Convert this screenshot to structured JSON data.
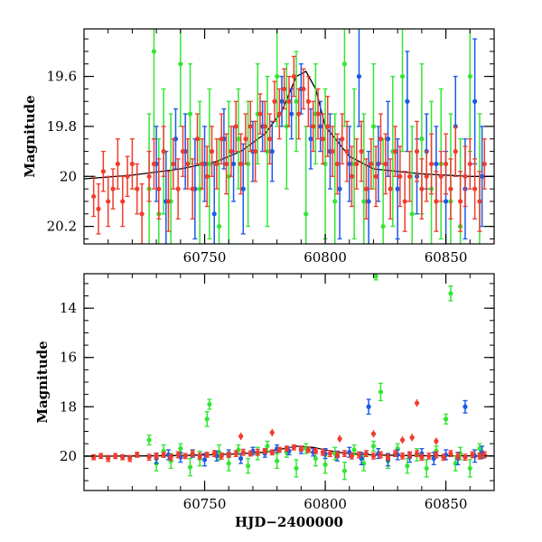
{
  "chart_data": [
    {
      "type": "scatter",
      "panel": "top",
      "xlabel": "",
      "ylabel": "Magnitude",
      "xlim": [
        60700,
        60870
      ],
      "ylim": [
        20.27,
        19.41
      ],
      "y_inverted": true,
      "xticks": [
        60750,
        60800,
        60850
      ],
      "xtick_labels": [
        "60750",
        "60800",
        "60850"
      ],
      "yticks": [
        19.6,
        19.8,
        20,
        20.2
      ],
      "ytick_labels": [
        "19.6",
        "19.8",
        "20",
        "20.2"
      ],
      "model_curve": {
        "color": "#000000",
        "x": [
          60700,
          60720,
          60740,
          60755,
          60765,
          60775,
          60782,
          60788,
          60792,
          60796,
          60800,
          60810,
          60820,
          60840,
          60860,
          60870
        ],
        "y": [
          20.01,
          19.995,
          19.97,
          19.94,
          19.9,
          19.83,
          19.74,
          19.6,
          19.58,
          19.65,
          19.8,
          19.92,
          19.97,
          19.99,
          20.0,
          20.0
        ]
      },
      "series": [
        {
          "color": "#33e633",
          "x": [
            60727,
            60729,
            60731,
            60733,
            60736,
            60740,
            60744,
            60748,
            60752,
            60756,
            60760,
            60764,
            60768,
            60772,
            60776,
            60780,
            60784,
            60788,
            60792,
            60796,
            60800,
            60804,
            60808,
            60812,
            60816,
            60820,
            60824,
            60828,
            60832,
            60836,
            60840,
            60844,
            60848,
            60852,
            60856,
            60860,
            60864
          ],
          "y": [
            20.05,
            19.5,
            20.15,
            19.9,
            20.1,
            19.55,
            19.75,
            20.05,
            19.95,
            20.2,
            20.0,
            19.85,
            19.95,
            19.75,
            19.9,
            19.6,
            19.8,
            19.7,
            20.15,
            19.75,
            19.95,
            20.1,
            19.55,
            19.95,
            20.1,
            19.8,
            20.2,
            19.9,
            19.6,
            20.15,
            19.85,
            20.05,
            19.95,
            20.1,
            20.2,
            19.6,
            20.1
          ],
          "err": [
            0.3,
            0.35,
            0.3,
            0.25,
            0.35,
            0.25,
            0.2,
            0.35,
            0.3,
            0.35,
            0.3,
            0.2,
            0.25,
            0.2,
            0.3,
            0.2,
            0.25,
            0.2,
            0.35,
            0.2,
            0.3,
            0.35,
            0.25,
            0.3,
            0.35,
            0.25,
            0.35,
            0.3,
            0.3,
            0.35,
            0.3,
            0.35,
            0.3,
            0.35,
            0.35,
            0.3,
            0.35
          ]
        },
        {
          "color": "#1a5ae6",
          "x": [
            60730,
            60734,
            60738,
            60742,
            60746,
            60750,
            60754,
            60758,
            60762,
            60766,
            60770,
            60774,
            60778,
            60782,
            60786,
            60790,
            60794,
            60798,
            60802,
            60806,
            60810,
            60814,
            60818,
            60822,
            60826,
            60830,
            60834,
            60838,
            60842,
            60846,
            60850,
            60854,
            60858,
            60862,
            60865
          ],
          "y": [
            19.95,
            20.1,
            19.85,
            19.9,
            20.05,
            19.95,
            20.15,
            19.85,
            19.95,
            20.05,
            19.9,
            19.8,
            19.9,
            19.7,
            19.75,
            19.65,
            19.85,
            19.8,
            19.9,
            20.05,
            19.95,
            19.6,
            20.1,
            19.95,
            19.85,
            20.05,
            19.7,
            20.0,
            19.9,
            19.95,
            20.1,
            19.8,
            20.05,
            19.7,
            20.0
          ],
          "err": [
            0.15,
            0.2,
            0.12,
            0.15,
            0.2,
            0.15,
            0.2,
            0.12,
            0.15,
            0.18,
            0.12,
            0.1,
            0.12,
            0.1,
            0.1,
            0.1,
            0.12,
            0.1,
            0.15,
            0.2,
            0.15,
            0.2,
            0.2,
            0.15,
            0.15,
            0.2,
            0.2,
            0.15,
            0.15,
            0.15,
            0.2,
            0.2,
            0.2,
            0.25,
            0.2
          ]
        },
        {
          "color": "#f03c2d",
          "x": [
            60704,
            60706,
            60708,
            60710,
            60712,
            60714,
            60716,
            60718,
            60720,
            60722,
            60724,
            60727,
            60729,
            60731,
            60733,
            60735,
            60737,
            60739,
            60741,
            60743,
            60745,
            60747,
            60749,
            60751,
            60753,
            60755,
            60757,
            60759,
            60761,
            60763,
            60765,
            60767,
            60769,
            60771,
            60773,
            60775,
            60777,
            60779,
            60781,
            60783,
            60785,
            60787,
            60789,
            60791,
            60793,
            60795,
            60797,
            60799,
            60801,
            60803,
            60805,
            60807,
            60809,
            60811,
            60813,
            60815,
            60817,
            60819,
            60821,
            60823,
            60825,
            60827,
            60829,
            60831,
            60833,
            60835,
            60838,
            60840,
            60842,
            60844,
            60846,
            60848,
            60850,
            60852,
            60854,
            60856,
            60858,
            60860,
            60862,
            60864,
            60866
          ],
          "y": [
            20.08,
            20.13,
            19.98,
            20.1,
            20.05,
            19.95,
            20.1,
            20.0,
            19.95,
            20.05,
            20.15,
            20.0,
            19.95,
            20.05,
            19.9,
            20.1,
            19.95,
            20.05,
            19.9,
            19.95,
            20.05,
            19.85,
            19.95,
            20.0,
            19.9,
            19.95,
            19.85,
            19.95,
            19.9,
            19.8,
            19.95,
            19.85,
            19.8,
            19.9,
            19.75,
            19.8,
            19.85,
            19.7,
            19.75,
            19.65,
            19.7,
            19.6,
            19.75,
            19.65,
            19.7,
            19.8,
            19.75,
            19.85,
            19.8,
            19.9,
            19.95,
            19.85,
            19.9,
            20.0,
            19.95,
            19.9,
            20.05,
            19.95,
            20.0,
            19.85,
            19.95,
            20.05,
            19.9,
            20.0,
            20.1,
            20.0,
            19.9,
            20.05,
            20.0,
            19.95,
            20.1,
            20.0,
            19.95,
            20.05,
            19.9,
            20.1,
            20.0,
            19.95,
            20.05,
            20.1,
            19.95
          ],
          "err": [
            0.08,
            0.1,
            0.08,
            0.1,
            0.08,
            0.1,
            0.1,
            0.08,
            0.1,
            0.1,
            0.12,
            0.1,
            0.1,
            0.12,
            0.1,
            0.12,
            0.1,
            0.12,
            0.1,
            0.1,
            0.12,
            0.1,
            0.1,
            0.12,
            0.1,
            0.1,
            0.1,
            0.12,
            0.1,
            0.1,
            0.12,
            0.1,
            0.1,
            0.12,
            0.08,
            0.1,
            0.1,
            0.08,
            0.1,
            0.08,
            0.1,
            0.08,
            0.1,
            0.08,
            0.1,
            0.1,
            0.1,
            0.1,
            0.12,
            0.1,
            0.12,
            0.1,
            0.12,
            0.12,
            0.1,
            0.12,
            0.12,
            0.1,
            0.12,
            0.1,
            0.12,
            0.12,
            0.1,
            0.12,
            0.12,
            0.1,
            0.12,
            0.12,
            0.1,
            0.12,
            0.12,
            0.1,
            0.12,
            0.12,
            0.1,
            0.12,
            0.12,
            0.1,
            0.12,
            0.12,
            0.1
          ]
        }
      ]
    },
    {
      "type": "scatter",
      "panel": "bottom",
      "xlabel": "HJD−2400000",
      "ylabel": "Magnitude",
      "xlim": [
        60700,
        60870
      ],
      "ylim": [
        21.4,
        12.6
      ],
      "y_inverted": true,
      "xticks": [
        60750,
        60800,
        60850
      ],
      "xtick_labels": [
        "60750",
        "60800",
        "60850"
      ],
      "yticks": [
        14,
        16,
        18,
        20
      ],
      "ytick_labels": [
        "14",
        "16",
        "18",
        "20"
      ],
      "model_curve": {
        "color": "#000000",
        "x": [
          60700,
          60720,
          60740,
          60760,
          60775,
          60788,
          60795,
          60805,
          60820,
          60840,
          60870
        ],
        "y": [
          20.01,
          20.0,
          19.98,
          19.93,
          19.85,
          19.6,
          19.65,
          19.85,
          19.96,
          19.99,
          20.0
        ]
      },
      "series": [
        {
          "color": "#33e633",
          "x": [
            60727,
            60730,
            60733,
            60736,
            60740,
            60744,
            60748,
            60751,
            60752,
            60756,
            60760,
            60764,
            60768,
            60772,
            60776,
            60780,
            60784,
            60788,
            60792,
            60796,
            60800,
            60804,
            60808,
            60812,
            60816,
            60820,
            60821,
            60823,
            60826,
            60830,
            60834,
            60838,
            60842,
            60846,
            60850,
            60852,
            60854,
            60856,
            60860,
            60864
          ],
          "y": [
            19.35,
            20.3,
            19.8,
            20.2,
            19.7,
            20.45,
            20.1,
            18.5,
            17.9,
            19.85,
            20.3,
            19.75,
            20.4,
            19.9,
            19.6,
            20.2,
            19.85,
            20.5,
            19.7,
            20.1,
            20.35,
            19.9,
            20.6,
            19.75,
            20.3,
            19.6,
            12.7,
            17.4,
            20.2,
            19.7,
            20.4,
            19.95,
            20.5,
            19.8,
            18.5,
            13.4,
            20.3,
            19.9,
            20.5,
            19.7
          ],
          "err": [
            0.2,
            0.3,
            0.25,
            0.3,
            0.2,
            0.35,
            0.3,
            0.3,
            0.2,
            0.3,
            0.3,
            0.2,
            0.3,
            0.25,
            0.2,
            0.3,
            0.2,
            0.35,
            0.2,
            0.3,
            0.35,
            0.25,
            0.35,
            0.2,
            0.3,
            0.2,
            0.15,
            0.35,
            0.3,
            0.2,
            0.3,
            0.25,
            0.35,
            0.2,
            0.2,
            0.3,
            0.3,
            0.25,
            0.35,
            0.2
          ]
        },
        {
          "color": "#1a5ae6",
          "x": [
            60730,
            60735,
            60740,
            60745,
            60750,
            60755,
            60760,
            60765,
            60770,
            60775,
            60780,
            60785,
            60790,
            60795,
            60800,
            60805,
            60810,
            60815,
            60818,
            60822,
            60826,
            60830,
            60835,
            60840,
            60845,
            60850,
            60855,
            60858,
            60862,
            60865
          ],
          "y": [
            20.1,
            19.95,
            20.05,
            19.9,
            20.15,
            20.0,
            19.9,
            20.1,
            19.8,
            19.9,
            19.7,
            19.8,
            19.75,
            19.85,
            19.9,
            20.0,
            19.85,
            20.1,
            18.0,
            19.9,
            20.15,
            19.95,
            20.05,
            19.9,
            20.1,
            19.95,
            20.1,
            18.0,
            20.0,
            19.85
          ],
          "err": [
            0.2,
            0.2,
            0.2,
            0.15,
            0.25,
            0.2,
            0.15,
            0.2,
            0.15,
            0.15,
            0.15,
            0.15,
            0.15,
            0.15,
            0.2,
            0.2,
            0.2,
            0.25,
            0.3,
            0.2,
            0.25,
            0.2,
            0.2,
            0.2,
            0.25,
            0.2,
            0.25,
            0.25,
            0.25,
            0.25
          ]
        },
        {
          "color": "#f03c2d",
          "x": [
            60704,
            60707,
            60710,
            60713,
            60716,
            60719,
            60722,
            60727,
            60730,
            60733,
            60736,
            60739,
            60742,
            60745,
            60748,
            60751,
            60754,
            60757,
            60760,
            60763,
            60766,
            60769,
            60772,
            60775,
            60778,
            60781,
            60784,
            60787,
            60790,
            60793,
            60796,
            60799,
            60802,
            60805,
            60808,
            60811,
            60814,
            60817,
            60820,
            60823,
            60826,
            60829,
            60832,
            60835,
            60838,
            60840,
            60843,
            60846,
            60849,
            60852,
            60855,
            60858,
            60861,
            60864,
            60866
          ],
          "y": [
            20.05,
            20.0,
            20.1,
            20.0,
            20.05,
            20.1,
            19.95,
            20.05,
            20.0,
            19.95,
            20.05,
            19.95,
            20.0,
            19.9,
            20.0,
            19.95,
            19.9,
            20.0,
            19.95,
            19.9,
            19.85,
            19.9,
            19.85,
            19.8,
            19.85,
            19.75,
            19.7,
            19.65,
            19.7,
            19.75,
            19.8,
            19.85,
            19.9,
            19.95,
            19.9,
            20.0,
            19.95,
            19.9,
            20.0,
            19.95,
            20.05,
            19.9,
            20.0,
            19.95,
            19.9,
            20.05,
            20.0,
            19.95,
            20.05,
            19.9,
            20.0,
            20.05,
            19.95,
            20.0,
            19.95
          ],
          "err": [
            0.1,
            0.1,
            0.12,
            0.1,
            0.1,
            0.12,
            0.1,
            0.12,
            0.12,
            0.1,
            0.12,
            0.12,
            0.1,
            0.12,
            0.12,
            0.1,
            0.12,
            0.12,
            0.1,
            0.12,
            0.12,
            0.1,
            0.12,
            0.1,
            0.1,
            0.1,
            0.1,
            0.1,
            0.1,
            0.1,
            0.1,
            0.12,
            0.12,
            0.12,
            0.12,
            0.12,
            0.12,
            0.12,
            0.12,
            0.12,
            0.12,
            0.12,
            0.12,
            0.12,
            0.12,
            0.12,
            0.12,
            0.12,
            0.12,
            0.12,
            0.12,
            0.12,
            0.12,
            0.12,
            0.12
          ],
          "outliers_x": [
            60765,
            60778,
            60806,
            60820,
            60832,
            60836,
            60838,
            60846
          ],
          "outliers_y": [
            19.2,
            19.05,
            19.3,
            19.1,
            19.35,
            19.25,
            17.85,
            19.4
          ]
        }
      ]
    }
  ]
}
